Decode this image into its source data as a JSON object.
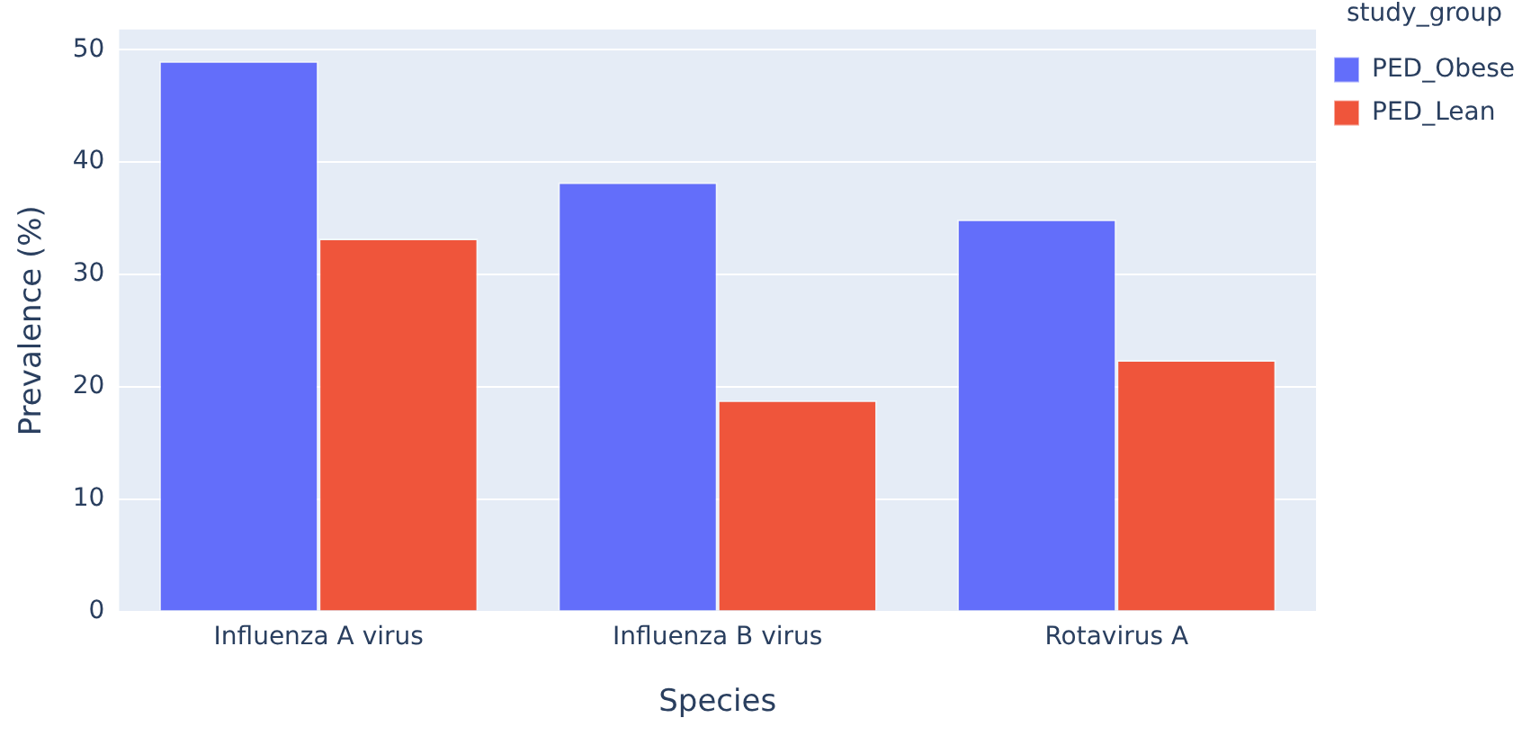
{
  "chart_data": {
    "type": "bar",
    "xlabel": "Species",
    "ylabel": "Prevalence (%)",
    "legend_title": "study_group",
    "categories": [
      "Influenza A virus",
      "Influenza B virus",
      "Rotavirus A"
    ],
    "series": [
      {
        "name": "PED_Obese",
        "color": "#636efa",
        "values": [
          49.0,
          38.2,
          34.9
        ]
      },
      {
        "name": "PED_Lean",
        "color": "#ef553b",
        "values": [
          33.2,
          18.8,
          22.4
        ]
      }
    ],
    "ylim": [
      0,
      51.8
    ],
    "yticks": [
      0,
      10,
      20,
      30,
      40,
      50
    ],
    "grid": "y",
    "legend": "top right"
  }
}
